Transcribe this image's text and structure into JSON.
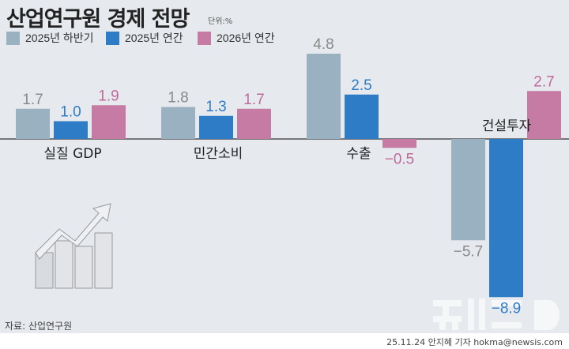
{
  "title": "산업연구원 경제 전망",
  "unit": "단위:%",
  "source": "자료: 산업연구원",
  "credit": "25.11.24 안지혜 기자 hokma@newsis.com",
  "logo": "뉴시스",
  "chart_data": {
    "type": "bar",
    "categories": [
      "실질 GDP",
      "민간소비",
      "수출",
      "건설투자"
    ],
    "series": [
      {
        "name": "2025년 하반기",
        "color": "#99b1c0",
        "label_color": "#8a8a8a",
        "values": [
          1.7,
          1.8,
          4.8,
          -5.7
        ]
      },
      {
        "name": "2025년 연간",
        "color": "#2f7cc6",
        "label_color": "#2f7cc6",
        "values": [
          1.0,
          1.3,
          2.5,
          -8.9
        ]
      },
      {
        "name": "2026년 연간",
        "color": "#c57ba4",
        "label_color": "#c06a9c",
        "values": [
          1.9,
          1.7,
          -0.5,
          2.7
        ]
      }
    ],
    "legend": "top-left",
    "grid": false
  }
}
